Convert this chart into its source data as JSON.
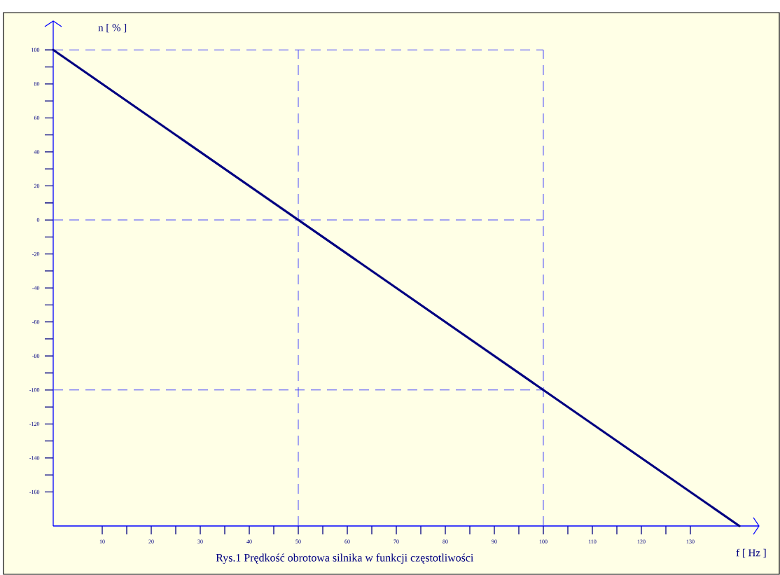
{
  "chart_data": {
    "type": "line",
    "title": "Rys.1 Prędkość obrotowa silnika w funkcji częstotliwości",
    "xlabel": "f [ Hz ]",
    "ylabel": "n [ % ]",
    "series": [
      {
        "color": "#000080",
        "x": [
          0,
          140
        ],
        "values": [
          100,
          -180
        ]
      }
    ],
    "xlim": [
      0,
      144
    ],
    "ylim": [
      -180,
      117
    ],
    "xticks": [
      10,
      20,
      30,
      40,
      50,
      60,
      70,
      80,
      90,
      100,
      110,
      120,
      130
    ],
    "yticks": [
      100,
      80,
      60,
      40,
      20,
      0,
      -20,
      -40,
      -60,
      -80,
      -100,
      -120,
      -140,
      -160
    ],
    "ref_lines": [
      {
        "axis": "y",
        "value": 100,
        "color": "#3333ff",
        "line_style": "dashed"
      },
      {
        "axis": "y",
        "value": 0,
        "color": "#3333ff",
        "line_style": "dashed"
      },
      {
        "axis": "y",
        "value": -100,
        "color": "#3333ff",
        "line_style": "dashed"
      },
      {
        "axis": "x",
        "value": 50,
        "color": "#3333ff",
        "line_style": "dashed"
      },
      {
        "axis": "x",
        "value": 100,
        "color": "#3333ff",
        "line_style": "dashed"
      }
    ],
    "grid": false
  }
}
